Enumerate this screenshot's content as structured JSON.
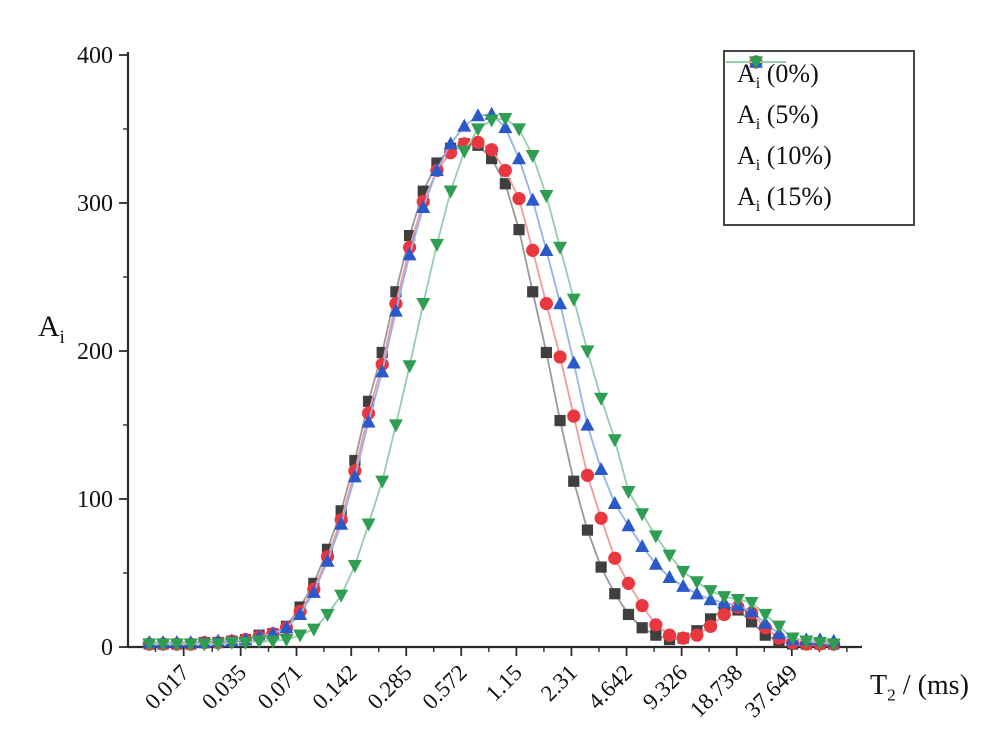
{
  "chart_data": {
    "type": "line",
    "title": "",
    "x_axis": {
      "scale": "log",
      "unit": "ms",
      "label_parts": {
        "base": "T",
        "sub": "2",
        "suffix": " / (ms)"
      },
      "range_ms": [
        0.0084,
        91.6
      ],
      "major_ticks": [
        0.017,
        0.035,
        0.071,
        0.142,
        0.285,
        0.572,
        1.15,
        2.31,
        4.642,
        9.326,
        18.738,
        37.649
      ],
      "major_tick_labels": [
        "0.017",
        "0.035",
        "0.071",
        "0.142",
        "0.285",
        "0.572",
        "1.15",
        "2.31",
        "4.642",
        "9.326",
        "18.738",
        "37.649"
      ],
      "minor_ticks": [
        0.0119,
        0.0244,
        0.0498,
        0.1004,
        0.2012,
        0.4036,
        0.811,
        1.6298,
        3.2748,
        6.5804,
        13.2191,
        26.5649,
        53.3823,
        75.66
      ]
    },
    "y_axis": {
      "label_parts": {
        "base": "A",
        "sub": "i",
        "suffix": ""
      },
      "range": [
        0,
        400
      ],
      "major_ticks": [
        0,
        100,
        200,
        300,
        400
      ],
      "major_tick_labels": [
        "0",
        "100",
        "200",
        "300",
        "400"
      ],
      "minor_ticks": [
        50,
        150,
        250,
        350
      ]
    },
    "x_ms": [
      0.011,
      0.0131,
      0.0156,
      0.0186,
      0.0221,
      0.0263,
      0.0313,
      0.0372,
      0.0442,
      0.0526,
      0.0625,
      0.0743,
      0.0884,
      0.1051,
      0.125,
      0.1487,
      0.1768,
      0.2102,
      0.25,
      0.2973,
      0.3536,
      0.4204,
      0.5,
      0.5946,
      0.7071,
      0.8409,
      1.0,
      1.1892,
      1.4142,
      1.6818,
      2.0,
      2.3784,
      2.8284,
      3.3636,
      4.0,
      4.7568,
      5.6569,
      6.7272,
      8.0,
      9.5137,
      11.3137,
      13.4543,
      16.0,
      19.0273,
      22.6274,
      26.9087,
      32.0,
      38.0546,
      45.2548,
      53.8174,
      64.0
    ],
    "series": [
      {
        "id": "ai-0pct",
        "label_parts": {
          "base": "A",
          "sub": "i",
          "suffix": " (0%)"
        },
        "marker": "square",
        "marker_color": "#3f3f3f",
        "line_color": "#9a9a9a",
        "values": [
          2,
          2,
          2,
          2,
          3,
          3,
          4,
          5,
          8,
          9,
          14,
          27,
          43,
          66,
          92,
          126,
          166,
          199,
          240,
          278,
          308,
          327,
          337,
          340,
          339,
          330,
          313,
          282,
          240,
          199,
          153,
          112,
          79,
          54,
          36,
          22,
          13,
          8,
          5,
          6,
          11,
          19,
          26,
          25,
          17,
          8,
          4,
          2,
          2,
          2,
          2
        ]
      },
      {
        "id": "ai-5pct",
        "label_parts": {
          "base": "A",
          "sub": "i",
          "suffix": " (5%)"
        },
        "marker": "circle",
        "marker_color": "#e8373e",
        "line_color": "#f29a9d",
        "values": [
          2,
          2,
          2,
          2,
          3,
          3,
          4,
          5,
          7,
          9,
          13,
          24,
          39,
          61,
          86,
          119,
          158,
          191,
          232,
          270,
          301,
          322,
          334,
          340,
          341,
          336,
          322,
          303,
          268,
          232,
          196,
          156,
          116,
          87,
          60,
          43,
          28,
          15,
          8,
          6,
          8,
          14,
          22,
          27,
          23,
          13,
          6,
          3,
          2,
          2,
          2
        ]
      },
      {
        "id": "ai-10pct",
        "label_parts": {
          "base": "A",
          "sub": "i",
          "suffix": " (10%)"
        },
        "marker": "triangle-up",
        "marker_color": "#2b59c9",
        "line_color": "#94b3ec",
        "values": [
          3,
          3,
          3,
          3,
          3,
          4,
          4,
          5,
          7,
          9,
          13,
          22,
          37,
          58,
          83,
          115,
          152,
          186,
          227,
          265,
          297,
          322,
          340,
          352,
          359,
          360,
          351,
          330,
          302,
          268,
          232,
          192,
          150,
          120,
          97,
          82,
          68,
          56,
          47,
          41,
          36,
          32,
          30,
          28,
          24,
          16,
          9,
          5,
          5,
          5,
          4
        ]
      },
      {
        "id": "ai-15pct",
        "label_parts": {
          "base": "A",
          "sub": "i",
          "suffix": " (15%)"
        },
        "marker": "triangle-down",
        "marker_color": "#2f9e52",
        "line_color": "#95cfa9",
        "values": [
          2,
          2,
          2,
          2,
          2,
          2,
          3,
          3,
          4,
          4,
          5,
          8,
          12,
          22,
          35,
          55,
          83,
          112,
          150,
          190,
          232,
          272,
          308,
          335,
          350,
          356,
          357,
          350,
          332,
          305,
          270,
          235,
          200,
          168,
          140,
          105,
          90,
          75,
          62,
          51,
          44,
          38,
          34,
          32,
          30,
          22,
          14,
          6,
          4,
          3,
          2
        ]
      }
    ],
    "legend": {
      "position": "top-right",
      "border_color": "#454545"
    },
    "axis_color": "#2b2b2b",
    "background": "#ffffff"
  }
}
